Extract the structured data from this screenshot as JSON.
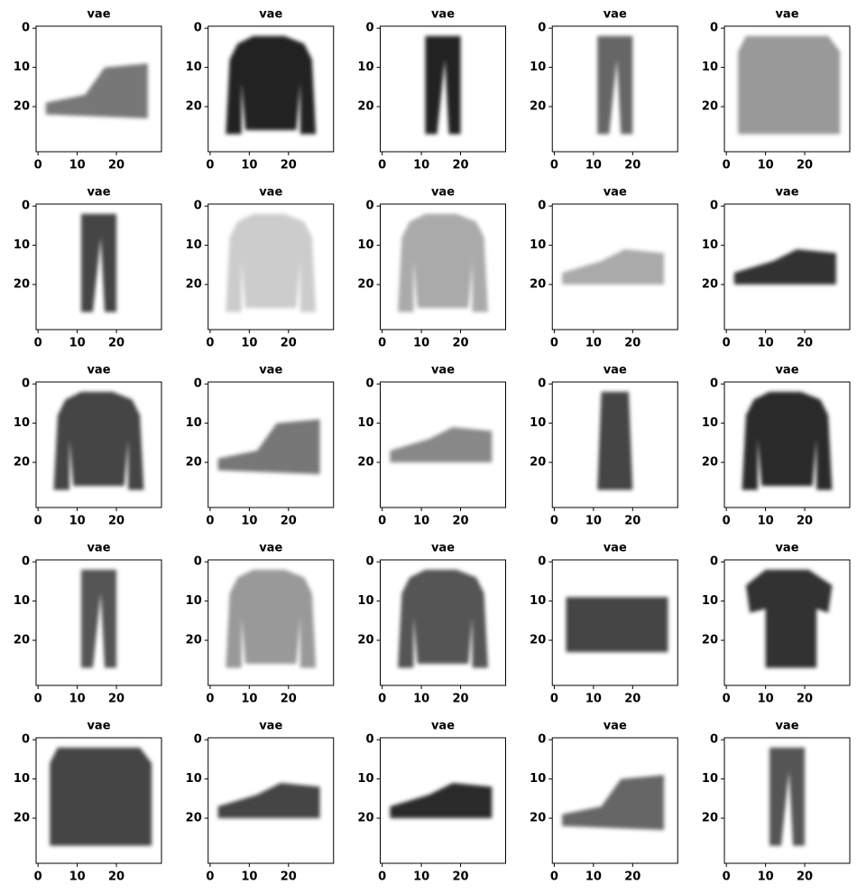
{
  "chart_data": [
    {
      "type": "image",
      "title": "vae",
      "xlim": [
        -0.5,
        31.5
      ],
      "ylim": [
        31.5,
        -0.5
      ],
      "xticks": [
        0,
        10,
        20
      ],
      "yticks": [
        0,
        10,
        20
      ]
    },
    {
      "type": "image",
      "title": "vae",
      "xlim": [
        -0.5,
        31.5
      ],
      "ylim": [
        31.5,
        -0.5
      ],
      "xticks": [
        0,
        10,
        20
      ],
      "yticks": [
        0,
        10,
        20
      ]
    },
    {
      "type": "image",
      "title": "vae",
      "xlim": [
        -0.5,
        31.5
      ],
      "ylim": [
        31.5,
        -0.5
      ],
      "xticks": [
        0,
        10,
        20
      ],
      "yticks": [
        0,
        10,
        20
      ]
    },
    {
      "type": "image",
      "title": "vae",
      "xlim": [
        -0.5,
        31.5
      ],
      "ylim": [
        31.5,
        -0.5
      ],
      "xticks": [
        0,
        10,
        20
      ],
      "yticks": [
        0,
        10,
        20
      ]
    },
    {
      "type": "image",
      "title": "vae",
      "xlim": [
        -0.5,
        31.5
      ],
      "ylim": [
        31.5,
        -0.5
      ],
      "xticks": [
        0,
        10,
        20
      ],
      "yticks": [
        0,
        10,
        20
      ]
    },
    {
      "type": "image",
      "title": "vae",
      "xlim": [
        -0.5,
        31.5
      ],
      "ylim": [
        31.5,
        -0.5
      ],
      "xticks": [
        0,
        10,
        20
      ],
      "yticks": [
        0,
        10,
        20
      ]
    },
    {
      "type": "image",
      "title": "vae",
      "xlim": [
        -0.5,
        31.5
      ],
      "ylim": [
        31.5,
        -0.5
      ],
      "xticks": [
        0,
        10,
        20
      ],
      "yticks": [
        0,
        10,
        20
      ]
    },
    {
      "type": "image",
      "title": "vae",
      "xlim": [
        -0.5,
        31.5
      ],
      "ylim": [
        31.5,
        -0.5
      ],
      "xticks": [
        0,
        10,
        20
      ],
      "yticks": [
        0,
        10,
        20
      ]
    },
    {
      "type": "image",
      "title": "vae",
      "xlim": [
        -0.5,
        31.5
      ],
      "ylim": [
        31.5,
        -0.5
      ],
      "xticks": [
        0,
        10,
        20
      ],
      "yticks": [
        0,
        10,
        20
      ]
    },
    {
      "type": "image",
      "title": "vae",
      "xlim": [
        -0.5,
        31.5
      ],
      "ylim": [
        31.5,
        -0.5
      ],
      "xticks": [
        0,
        10,
        20
      ],
      "yticks": [
        0,
        10,
        20
      ]
    },
    {
      "type": "image",
      "title": "vae",
      "xlim": [
        -0.5,
        31.5
      ],
      "ylim": [
        31.5,
        -0.5
      ],
      "xticks": [
        0,
        10,
        20
      ],
      "yticks": [
        0,
        10,
        20
      ]
    },
    {
      "type": "image",
      "title": "vae",
      "xlim": [
        -0.5,
        31.5
      ],
      "ylim": [
        31.5,
        -0.5
      ],
      "xticks": [
        0,
        10,
        20
      ],
      "yticks": [
        0,
        10,
        20
      ]
    },
    {
      "type": "image",
      "title": "vae",
      "xlim": [
        -0.5,
        31.5
      ],
      "ylim": [
        31.5,
        -0.5
      ],
      "xticks": [
        0,
        10,
        20
      ],
      "yticks": [
        0,
        10,
        20
      ]
    },
    {
      "type": "image",
      "title": "vae",
      "xlim": [
        -0.5,
        31.5
      ],
      "ylim": [
        31.5,
        -0.5
      ],
      "xticks": [
        0,
        10,
        20
      ],
      "yticks": [
        0,
        10,
        20
      ]
    },
    {
      "type": "image",
      "title": "vae",
      "xlim": [
        -0.5,
        31.5
      ],
      "ylim": [
        31.5,
        -0.5
      ],
      "xticks": [
        0,
        10,
        20
      ],
      "yticks": [
        0,
        10,
        20
      ]
    },
    {
      "type": "image",
      "title": "vae",
      "xlim": [
        -0.5,
        31.5
      ],
      "ylim": [
        31.5,
        -0.5
      ],
      "xticks": [
        0,
        10,
        20
      ],
      "yticks": [
        0,
        10,
        20
      ]
    },
    {
      "type": "image",
      "title": "vae",
      "xlim": [
        -0.5,
        31.5
      ],
      "ylim": [
        31.5,
        -0.5
      ],
      "xticks": [
        0,
        10,
        20
      ],
      "yticks": [
        0,
        10,
        20
      ]
    },
    {
      "type": "image",
      "title": "vae",
      "xlim": [
        -0.5,
        31.5
      ],
      "ylim": [
        31.5,
        -0.5
      ],
      "xticks": [
        0,
        10,
        20
      ],
      "yticks": [
        0,
        10,
        20
      ]
    },
    {
      "type": "image",
      "title": "vae",
      "xlim": [
        -0.5,
        31.5
      ],
      "ylim": [
        31.5,
        -0.5
      ],
      "xticks": [
        0,
        10,
        20
      ],
      "yticks": [
        0,
        10,
        20
      ]
    },
    {
      "type": "image",
      "title": "vae",
      "xlim": [
        -0.5,
        31.5
      ],
      "ylim": [
        31.5,
        -0.5
      ],
      "xticks": [
        0,
        10,
        20
      ],
      "yticks": [
        0,
        10,
        20
      ]
    },
    {
      "type": "image",
      "title": "vae",
      "xlim": [
        -0.5,
        31.5
      ],
      "ylim": [
        31.5,
        -0.5
      ],
      "xticks": [
        0,
        10,
        20
      ],
      "yticks": [
        0,
        10,
        20
      ]
    },
    {
      "type": "image",
      "title": "vae",
      "xlim": [
        -0.5,
        31.5
      ],
      "ylim": [
        31.5,
        -0.5
      ],
      "xticks": [
        0,
        10,
        20
      ],
      "yticks": [
        0,
        10,
        20
      ]
    },
    {
      "type": "image",
      "title": "vae",
      "xlim": [
        -0.5,
        31.5
      ],
      "ylim": [
        31.5,
        -0.5
      ],
      "xticks": [
        0,
        10,
        20
      ],
      "yticks": [
        0,
        10,
        20
      ]
    },
    {
      "type": "image",
      "title": "vae",
      "xlim": [
        -0.5,
        31.5
      ],
      "ylim": [
        31.5,
        -0.5
      ],
      "xticks": [
        0,
        10,
        20
      ],
      "yticks": [
        0,
        10,
        20
      ]
    },
    {
      "type": "image",
      "title": "vae",
      "xlim": [
        -0.5,
        31.5
      ],
      "ylim": [
        31.5,
        -0.5
      ],
      "xticks": [
        0,
        10,
        20
      ],
      "yticks": [
        0,
        10,
        20
      ]
    }
  ]
}
